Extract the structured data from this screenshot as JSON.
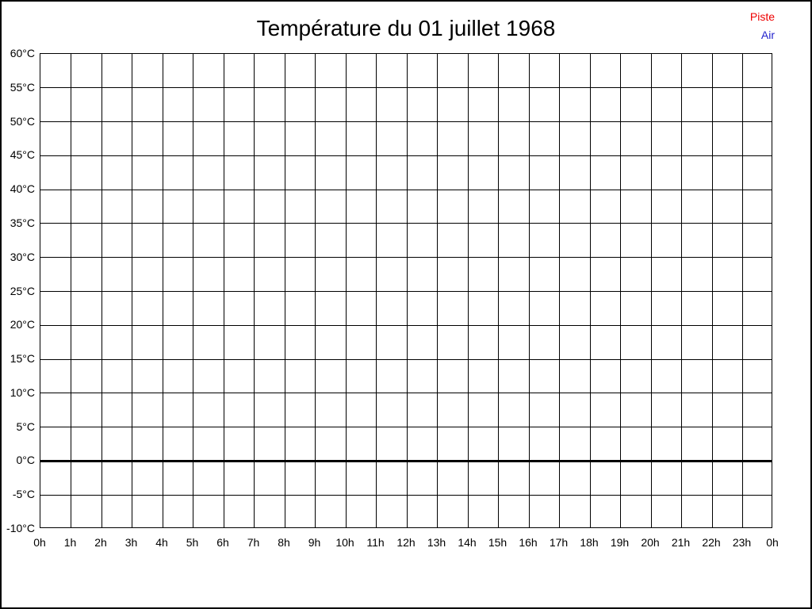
{
  "title": "Température du 01 juillet 1968",
  "legend": {
    "items": [
      {
        "label": "Piste",
        "color": "#ee0000"
      },
      {
        "label": "Air",
        "color": "#2222cc"
      }
    ]
  },
  "chart_data": {
    "type": "line",
    "title": "Température du 01 juillet 1968",
    "xlabel": "",
    "ylabel": "",
    "x_tick_labels": [
      "0h",
      "1h",
      "2h",
      "3h",
      "4h",
      "5h",
      "6h",
      "7h",
      "8h",
      "9h",
      "10h",
      "11h",
      "12h",
      "13h",
      "14h",
      "15h",
      "16h",
      "17h",
      "18h",
      "19h",
      "20h",
      "21h",
      "22h",
      "23h",
      "0h"
    ],
    "y_tick_labels": [
      "60°C",
      "55°C",
      "50°C",
      "45°C",
      "40°C",
      "35°C",
      "30°C",
      "25°C",
      "20°C",
      "15°C",
      "10°C",
      "5°C",
      "0°C",
      "-5°C",
      "-10°C"
    ],
    "xlim": [
      0,
      24
    ],
    "ylim": [
      -10,
      60
    ],
    "grid": true,
    "zero_line_bold": true,
    "legend_position": "top-right",
    "series": [
      {
        "name": "Piste",
        "color": "#ee0000",
        "x": [],
        "values": []
      },
      {
        "name": "Air",
        "color": "#2222cc",
        "x": [],
        "values": []
      }
    ]
  }
}
